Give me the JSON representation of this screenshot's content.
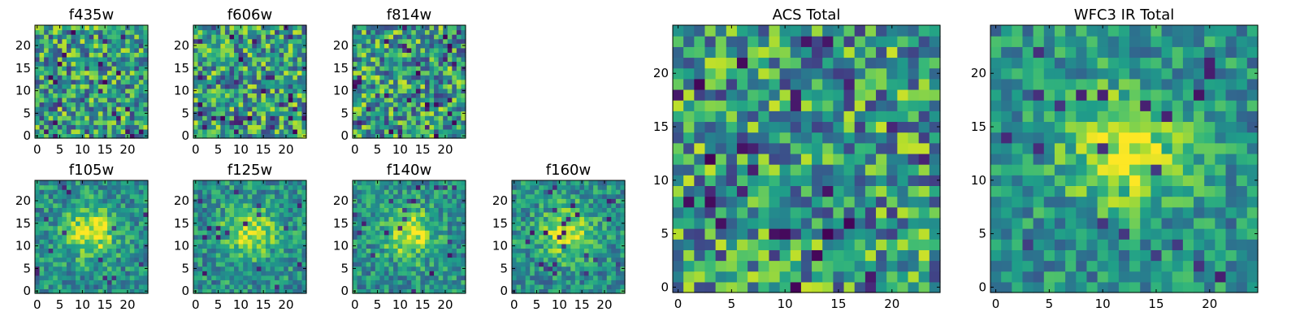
{
  "chart_data": [
    {
      "type": "heatmap",
      "title": "f435w",
      "xlim": [
        0,
        24
      ],
      "ylim": [
        0,
        24
      ],
      "xticks": [
        0,
        5,
        10,
        15,
        20
      ],
      "yticks": [
        0,
        5,
        10,
        15,
        20
      ],
      "colormap": "viridis",
      "pixels_per_side": 25,
      "signal": "noise"
    },
    {
      "type": "heatmap",
      "title": "f606w",
      "xlim": [
        0,
        24
      ],
      "ylim": [
        0,
        24
      ],
      "xticks": [
        0,
        5,
        10,
        15,
        20
      ],
      "yticks": [
        0,
        5,
        10,
        15,
        20
      ],
      "colormap": "viridis",
      "pixels_per_side": 25,
      "signal": "noise"
    },
    {
      "type": "heatmap",
      "title": "f814w",
      "xlim": [
        0,
        24
      ],
      "ylim": [
        0,
        24
      ],
      "xticks": [
        0,
        5,
        10,
        15,
        20
      ],
      "yticks": [
        0,
        5,
        10,
        15,
        20
      ],
      "colormap": "viridis",
      "pixels_per_side": 25,
      "signal": "noise"
    },
    {
      "type": "heatmap",
      "title": "f105w",
      "xlim": [
        0,
        24
      ],
      "ylim": [
        0,
        24
      ],
      "xticks": [
        0,
        5,
        10,
        15,
        20
      ],
      "yticks": [
        0,
        5,
        10,
        15,
        20
      ],
      "colormap": "viridis",
      "pixels_per_side": 25,
      "signal": "central source"
    },
    {
      "type": "heatmap",
      "title": "f125w",
      "xlim": [
        0,
        24
      ],
      "ylim": [
        0,
        24
      ],
      "xticks": [
        0,
        5,
        10,
        15,
        20
      ],
      "yticks": [
        0,
        5,
        10,
        15,
        20
      ],
      "colormap": "viridis",
      "pixels_per_side": 25,
      "signal": "central source"
    },
    {
      "type": "heatmap",
      "title": "f140w",
      "xlim": [
        0,
        24
      ],
      "ylim": [
        0,
        24
      ],
      "xticks": [
        0,
        5,
        10,
        15,
        20
      ],
      "yticks": [
        0,
        5,
        10,
        15,
        20
      ],
      "colormap": "viridis",
      "pixels_per_side": 25,
      "signal": "central source"
    },
    {
      "type": "heatmap",
      "title": "f160w",
      "xlim": [
        0,
        24
      ],
      "ylim": [
        0,
        24
      ],
      "xticks": [
        0,
        5,
        10,
        15,
        20
      ],
      "yticks": [
        0,
        5,
        10,
        15,
        20
      ],
      "colormap": "viridis",
      "pixels_per_side": 25,
      "signal": "central source"
    },
    {
      "type": "heatmap",
      "title": "ACS Total",
      "xlim": [
        0,
        24
      ],
      "ylim": [
        0,
        24
      ],
      "xticks": [
        0,
        5,
        10,
        15,
        20
      ],
      "yticks": [
        0,
        5,
        10,
        15,
        20
      ],
      "colormap": "viridis",
      "pixels_per_side": 25,
      "signal": "noise"
    },
    {
      "type": "heatmap",
      "title": "WFC3 IR Total",
      "xlim": [
        0,
        24
      ],
      "ylim": [
        0,
        24
      ],
      "xticks": [
        0,
        5,
        10,
        15,
        20
      ],
      "yticks": [
        0,
        5,
        10,
        15,
        20
      ],
      "colormap": "viridis",
      "pixels_per_side": 25,
      "signal": "central source"
    }
  ]
}
